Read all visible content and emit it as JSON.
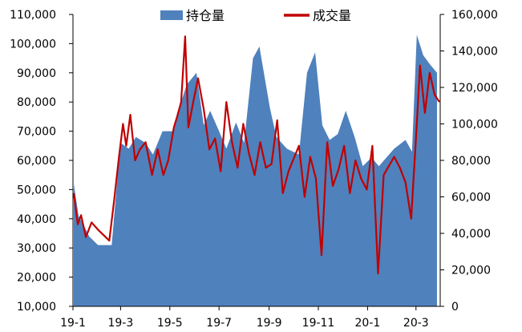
{
  "chart_data": {
    "type": "area+line",
    "x_tick_labels": [
      "19-1",
      "19-3",
      "19-5",
      "19-7",
      "19-9",
      "19-11",
      "20-1",
      "20-3"
    ],
    "y_left": {
      "ticks": [
        "10,000",
        "20,000",
        "30,000",
        "40,000",
        "50,000",
        "60,000",
        "70,000",
        "80,000",
        "90,000",
        "100,000",
        "110,000"
      ],
      "min": 10000,
      "max": 110000
    },
    "y_right": {
      "ticks": [
        "0",
        "20,000",
        "40,000",
        "60,000",
        "80,000",
        "100,000",
        "120,000",
        "140,000",
        "160,000"
      ],
      "min": 0,
      "max": 160000
    },
    "legend_position": "top-center",
    "series": [
      {
        "name": "持仓量",
        "type": "area",
        "axis": "left",
        "color": "#4f81bd",
        "x": [
          "2019-01-02",
          "2019-01-08",
          "2019-01-14",
          "2019-01-21",
          "2019-02-01",
          "2019-02-18",
          "2019-02-26",
          "2019-03-01",
          "2019-03-11",
          "2019-03-20",
          "2019-04-01",
          "2019-04-10",
          "2019-04-22",
          "2019-05-06",
          "2019-05-15",
          "2019-05-22",
          "2019-06-03",
          "2019-06-12",
          "2019-06-20",
          "2019-07-01",
          "2019-07-10",
          "2019-07-22",
          "2019-08-01",
          "2019-08-12",
          "2019-08-20",
          "2019-09-02",
          "2019-09-10",
          "2019-09-23",
          "2019-10-08",
          "2019-10-18",
          "2019-10-28",
          "2019-11-06",
          "2019-11-15",
          "2019-11-25",
          "2019-12-05",
          "2019-12-16",
          "2019-12-26",
          "2020-01-06",
          "2020-01-15",
          "2020-02-03",
          "2020-02-17",
          "2020-02-25",
          "2020-03-02",
          "2020-03-10",
          "2020-03-18",
          "2020-03-27"
        ],
        "values": [
          52000,
          41000,
          38000,
          34000,
          31000,
          31000,
          57000,
          66000,
          64000,
          68000,
          66000,
          62000,
          70000,
          70000,
          80000,
          86000,
          90000,
          72000,
          77000,
          70000,
          64000,
          73000,
          66000,
          95000,
          99000,
          78000,
          68000,
          64000,
          62000,
          90000,
          97000,
          72000,
          67000,
          69000,
          77000,
          68000,
          58000,
          61000,
          58000,
          64000,
          67000,
          63000,
          103000,
          96000,
          93000,
          90000
        ]
      },
      {
        "name": "成交量",
        "type": "line",
        "axis": "right",
        "color": "#c00000",
        "x": [
          "2019-01-02",
          "2019-01-07",
          "2019-01-11",
          "2019-01-17",
          "2019-01-24",
          "2019-02-01",
          "2019-02-15",
          "2019-02-21",
          "2019-02-27",
          "2019-03-04",
          "2019-03-08",
          "2019-03-13",
          "2019-03-19",
          "2019-03-25",
          "2019-04-01",
          "2019-04-09",
          "2019-04-16",
          "2019-04-23",
          "2019-04-29",
          "2019-05-06",
          "2019-05-10",
          "2019-05-15",
          "2019-05-20",
          "2019-05-24",
          "2019-05-30",
          "2019-06-05",
          "2019-06-12",
          "2019-06-19",
          "2019-06-26",
          "2019-07-03",
          "2019-07-10",
          "2019-07-17",
          "2019-07-24",
          "2019-07-31",
          "2019-08-07",
          "2019-08-14",
          "2019-08-21",
          "2019-08-28",
          "2019-09-04",
          "2019-09-11",
          "2019-09-18",
          "2019-09-25",
          "2019-10-08",
          "2019-10-15",
          "2019-10-22",
          "2019-10-29",
          "2019-11-05",
          "2019-11-12",
          "2019-11-19",
          "2019-11-26",
          "2019-12-03",
          "2019-12-10",
          "2019-12-17",
          "2019-12-24",
          "2019-12-31",
          "2020-01-07",
          "2020-01-14",
          "2020-01-21",
          "2020-02-03",
          "2020-02-10",
          "2020-02-17",
          "2020-02-24",
          "2020-03-02",
          "2020-03-06",
          "2020-03-12",
          "2020-03-18",
          "2020-03-24",
          "2020-03-30"
        ],
        "values": [
          62000,
          45000,
          50000,
          38000,
          46000,
          42000,
          36000,
          58000,
          82000,
          100000,
          88000,
          105000,
          80000,
          86000,
          90000,
          72000,
          86000,
          72000,
          80000,
          98000,
          104000,
          112000,
          148000,
          98000,
          112000,
          125000,
          108000,
          86000,
          92000,
          74000,
          112000,
          90000,
          76000,
          100000,
          84000,
          72000,
          90000,
          76000,
          78000,
          102000,
          62000,
          74000,
          88000,
          60000,
          82000,
          70000,
          28000,
          90000,
          66000,
          75000,
          88000,
          62000,
          80000,
          70000,
          64000,
          88000,
          18000,
          72000,
          82000,
          76000,
          68000,
          48000,
          100000,
          132000,
          106000,
          128000,
          116000,
          112000
        ]
      }
    ]
  }
}
